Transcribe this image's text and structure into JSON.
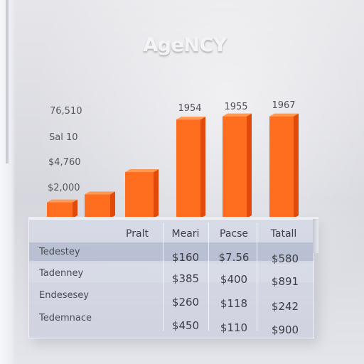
{
  "chart_data": {
    "type": "bar",
    "title": "AgeNCY",
    "y_tick_labels": [
      "76,510",
      "Sal 10",
      "$4,760",
      "$2,000"
    ],
    "values": [
      1,
      1.5,
      2.9,
      6.2,
      6.4,
      6.4
    ],
    "value_labels": [
      "",
      "",
      "",
      "1954",
      "1955",
      "1967"
    ],
    "colors": {
      "bar_front": "#ff6e1f",
      "bar_side": "#e24a0c",
      "bar_top": "#ff9a55"
    },
    "grid": false,
    "legend": "none"
  },
  "table": {
    "headers": [
      "Pralt",
      "Meari",
      "Pacse",
      "Tatall"
    ],
    "rows": [
      {
        "label": "Tedestey",
        "cells": [
          "$160",
          "$7.56",
          "$580"
        ]
      },
      {
        "label": "Tadenney",
        "cells": [
          "$385",
          "$400",
          "$891"
        ]
      },
      {
        "label": "Endesesey",
        "cells": [
          "$260",
          "$118",
          "$242"
        ]
      },
      {
        "label": "Tedemnace",
        "cells": [
          "$450",
          "$110",
          "$900"
        ]
      }
    ]
  }
}
